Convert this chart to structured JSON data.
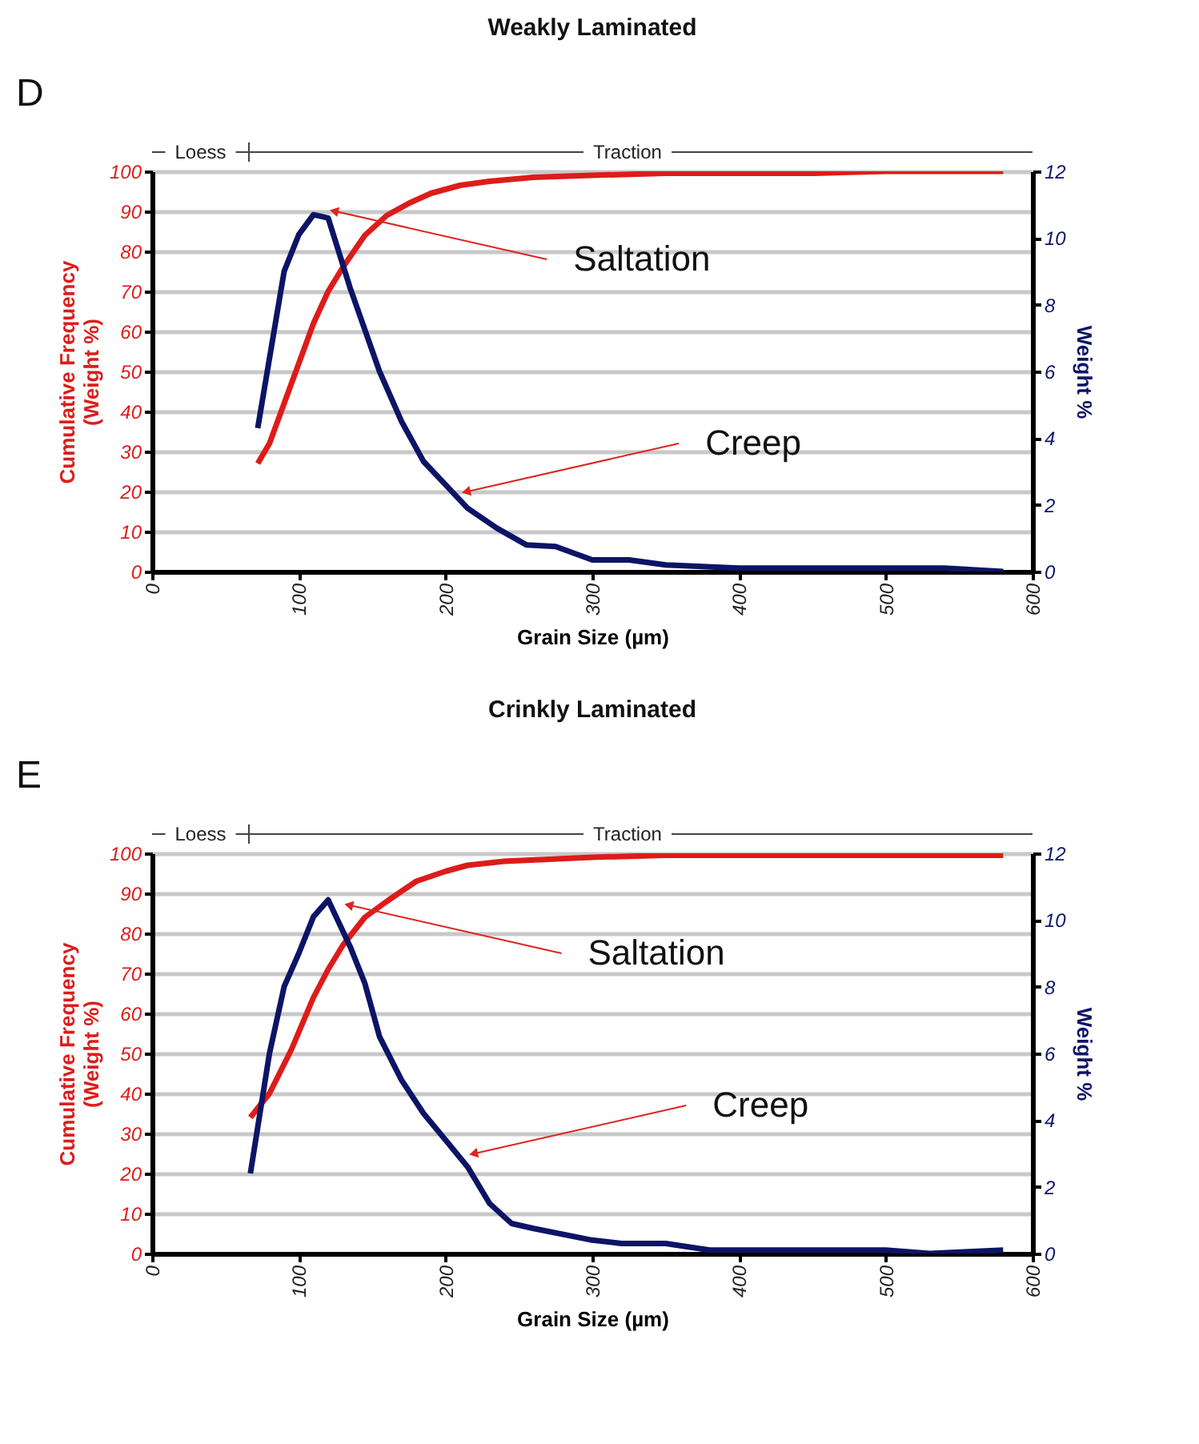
{
  "chart_data": [
    {
      "type": "line",
      "title": "Weakly Laminated",
      "xlabel": "Grain Size (µm)",
      "ylabel": "Cumulative Frequency (Weight %)",
      "y2label": "Weight %",
      "xlim": [
        0,
        600
      ],
      "xticks": [
        0,
        100,
        200,
        300,
        400,
        500,
        600
      ],
      "ylim": [
        0,
        100
      ],
      "yticks": [
        0,
        10,
        20,
        30,
        40,
        50,
        60,
        70,
        80,
        90,
        100
      ],
      "y2lim": [
        0,
        12
      ],
      "y2ticks": [
        0,
        2,
        4,
        6,
        8,
        10,
        12
      ],
      "grid": "y",
      "annotations": [
        "D",
        "Loess",
        "Traction",
        {
          "text": "Saltation",
          "x": 125,
          "y": 90
        },
        {
          "text": "Creep",
          "x": 215,
          "y": 20
        }
      ],
      "series": [
        {
          "color": "#dd1c1a",
          "x": [
            72,
            80,
            90,
            100,
            110,
            120,
            130,
            145,
            160,
            175,
            190,
            210,
            230,
            260,
            300,
            350,
            450,
            500,
            580
          ],
          "values": [
            27,
            32,
            42,
            52,
            62,
            70,
            76,
            84,
            89,
            92,
            94.5,
            96.5,
            97.5,
            98.5,
            99,
            99.5,
            99.5,
            100,
            100
          ]
        },
        {
          "color": "#0c1466",
          "axis": "y2",
          "x": [
            72,
            90,
            100,
            110,
            120,
            135,
            155,
            170,
            185,
            200,
            215,
            235,
            255,
            275,
            300,
            325,
            350,
            400,
            450,
            500,
            540,
            580
          ],
          "values": [
            4.3,
            9,
            10.1,
            10.7,
            10.6,
            8.5,
            6,
            4.5,
            3.3,
            2.6,
            1.9,
            1.3,
            0.8,
            0.75,
            0.35,
            0.35,
            0.2,
            0.1,
            0.1,
            0.1,
            0.1,
            0
          ]
        }
      ]
    },
    {
      "type": "line",
      "title": "Crinkly Laminated",
      "xlabel": "Grain Size (µm)",
      "ylabel": "Cumulative Frequency (Weight %)",
      "y2label": "Weight %",
      "xlim": [
        0,
        600
      ],
      "xticks": [
        0,
        100,
        200,
        300,
        400,
        500,
        600
      ],
      "ylim": [
        0,
        100
      ],
      "yticks": [
        0,
        10,
        20,
        30,
        40,
        50,
        60,
        70,
        80,
        90,
        100
      ],
      "y2lim": [
        0,
        12
      ],
      "y2ticks": [
        0,
        2,
        4,
        6,
        8,
        10,
        12
      ],
      "grid": "y",
      "annotations": [
        "E",
        "Loess",
        "Traction",
        {
          "text": "Saltation",
          "x": 135,
          "y": 87
        },
        {
          "text": "Creep",
          "x": 220,
          "y": 25
        }
      ],
      "series": [
        {
          "color": "#dd1c1a",
          "x": [
            67,
            80,
            95,
            110,
            120,
            130,
            145,
            160,
            180,
            200,
            215,
            240,
            300,
            350,
            580
          ],
          "values": [
            34,
            40,
            51,
            64,
            71,
            77,
            84,
            88,
            93,
            95.5,
            97,
            98,
            99,
            99.5,
            99.5
          ]
        },
        {
          "color": "#0c1466",
          "axis": "y2",
          "x": [
            67,
            80,
            90,
            100,
            110,
            120,
            135,
            145,
            155,
            170,
            185,
            200,
            215,
            230,
            245,
            260,
            300,
            320,
            350,
            380,
            440,
            500,
            530,
            580
          ],
          "values": [
            2.4,
            6,
            8,
            9,
            10.1,
            10.6,
            9.2,
            8.1,
            6.5,
            5.2,
            4.2,
            3.4,
            2.6,
            1.5,
            0.9,
            0.75,
            0.4,
            0.3,
            0.3,
            0.1,
            0.1,
            0.1,
            0,
            0.1
          ]
        }
      ]
    }
  ]
}
